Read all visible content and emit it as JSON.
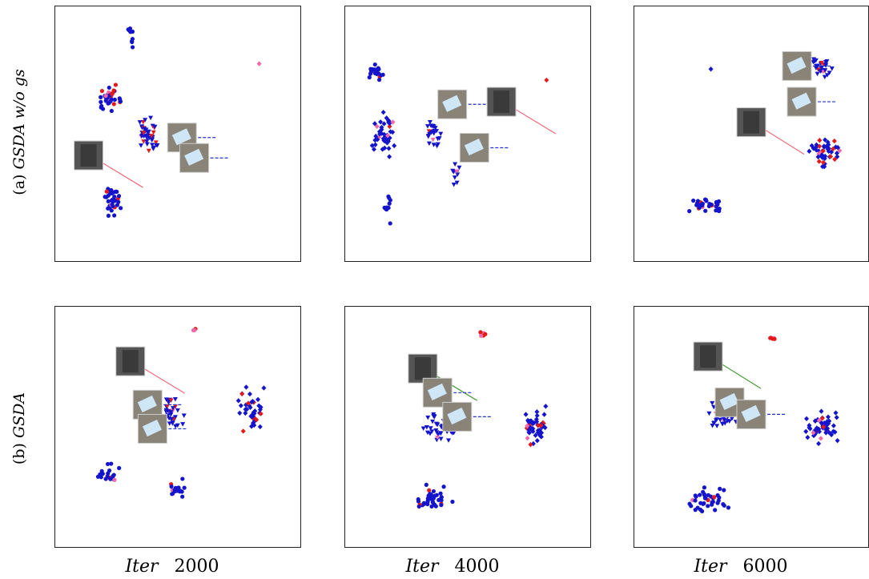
{
  "rows": [
    {
      "tag": "(a)",
      "name": "GSDA w/o gs"
    },
    {
      "tag": "(b)",
      "name": "GSDA"
    }
  ],
  "columns": [
    {
      "label": "Iter",
      "iteration": 2000
    },
    {
      "label": "Iter",
      "iteration": 4000
    },
    {
      "label": "Iter",
      "iteration": 6000
    }
  ]
}
